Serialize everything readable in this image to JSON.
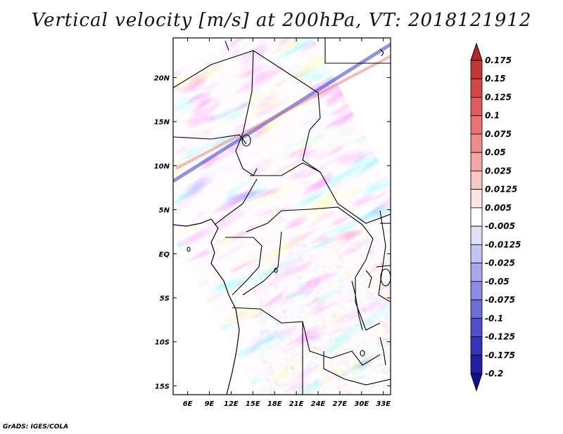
{
  "title": "Vertical velocity [m/s] at 200hPa, VT: 2018121912",
  "credit": "GrADS: IGES/COLA",
  "map": {
    "region": "Central Africa",
    "lon_range": [
      4,
      34
    ],
    "lat_range": [
      -16,
      24.5
    ],
    "x_ticks": [
      "6E",
      "9E",
      "12E",
      "15E",
      "18E",
      "21E",
      "24E",
      "27E",
      "30E",
      "33E"
    ],
    "x_tick_values": [
      6,
      9,
      12,
      15,
      18,
      21,
      24,
      27,
      30,
      33
    ],
    "y_ticks": [
      "20N",
      "15N",
      "10N",
      "5N",
      "EQ",
      "5S",
      "10S",
      "15S"
    ],
    "y_tick_values": [
      20,
      15,
      10,
      5,
      0,
      -5,
      -10,
      -15
    ]
  },
  "colorbar": {
    "labels": [
      "0.175",
      "0.15",
      "0.125",
      "0.1",
      "0.075",
      "0.05",
      "0.025",
      "0.0125",
      "0.005",
      "-0.005",
      "-0.0125",
      "-0.025",
      "-0.05",
      "-0.075",
      "-0.1",
      "-0.125",
      "-0.175",
      "-0.2"
    ],
    "colors": [
      "#b02a2a",
      "#c23838",
      "#d24848",
      "#df5c5c",
      "#e87474",
      "#ee8c8c",
      "#f3a6a6",
      "#f8c6c6",
      "#fce4e4",
      "#ffffff",
      "#e0e0f8",
      "#c4c4f2",
      "#a8a8ec",
      "#8c8ce4",
      "#6e6ed9",
      "#5050cc",
      "#3434b8",
      "#2020a0",
      "#10108a"
    ]
  }
}
